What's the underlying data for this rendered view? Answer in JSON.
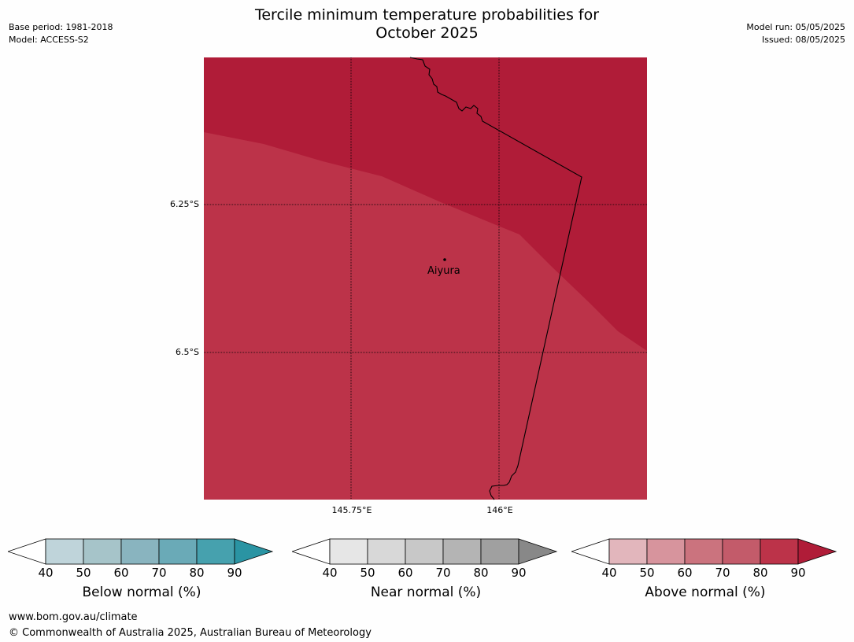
{
  "title_line1": "Tercile minimum temperature probabilities for",
  "title_line2": "October 2025",
  "base_period": "Base period: 1981-2018",
  "model": "Model: ACCESS-S2",
  "model_run": "Model run: 05/05/2025",
  "issued": "Issued: 08/05/2025",
  "map": {
    "latitudes": [
      "6.25°S",
      "6.5°S"
    ],
    "longitudes": [
      "145.75°E",
      "146°E"
    ],
    "location": "Aiyura",
    "colors": {
      "above_80_90": "#b01c38",
      "above_70_80": "#bc3349",
      "border": "#000000"
    }
  },
  "legends": [
    {
      "label": "Below normal (%)",
      "ticks": [
        "40",
        "50",
        "60",
        "70",
        "80",
        "90"
      ],
      "colors": [
        "#ffffff",
        "#bfd4da",
        "#a6c4c9",
        "#89b4bf",
        "#6aaab7",
        "#46a1ae",
        "#2a94a3"
      ]
    },
    {
      "label": "Near normal (%)",
      "ticks": [
        "40",
        "50",
        "60",
        "70",
        "80",
        "90"
      ],
      "colors": [
        "#ffffff",
        "#e6e6e6",
        "#d8d8d8",
        "#c8c8c8",
        "#b4b4b4",
        "#a0a0a0",
        "#888888"
      ]
    },
    {
      "label": "Above normal (%)",
      "ticks": [
        "40",
        "50",
        "60",
        "70",
        "80",
        "90"
      ],
      "colors": [
        "#ffffff",
        "#e2b6bc",
        "#d7949d",
        "#cb737e",
        "#c35b6a",
        "#bc3349",
        "#b01c38"
      ]
    }
  ],
  "footer_url": "www.bom.gov.au/climate",
  "footer_copyright": "© Commonwealth of Australia 2025, Australian Bureau of Meteorology"
}
